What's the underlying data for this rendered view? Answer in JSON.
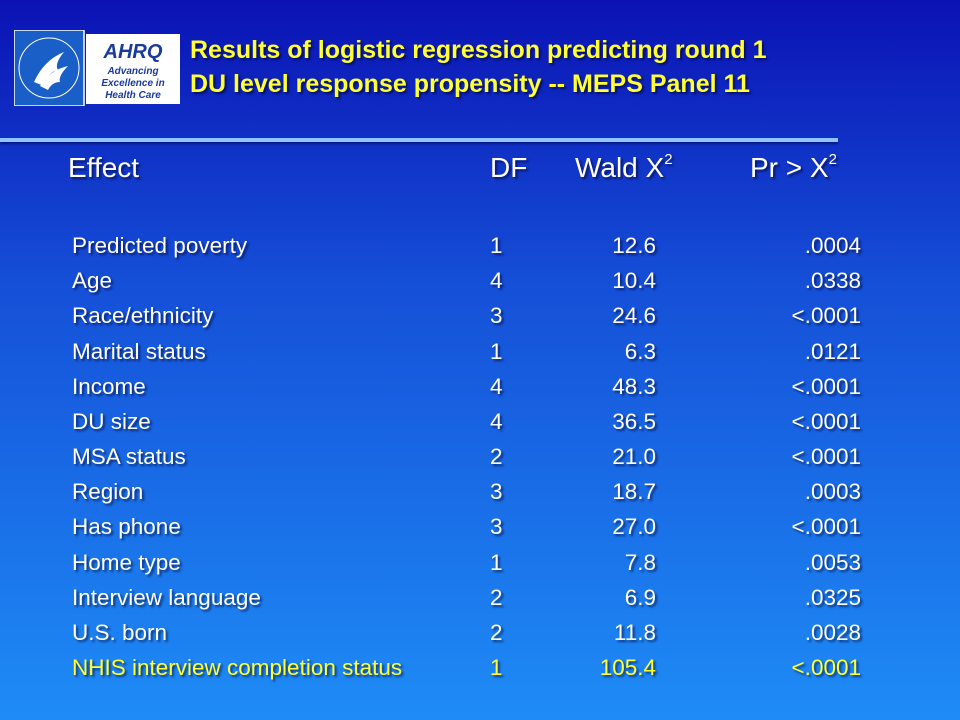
{
  "header": {
    "title_lines": [
      "Results of logistic regression predicting round 1",
      "DU level response propensity -- MEPS Panel 11"
    ],
    "logo": {
      "name": "AHRQ",
      "tagline": [
        "Advancing",
        "Excellence in",
        "Health Care"
      ]
    }
  },
  "table": {
    "columns": [
      {
        "text": "Effect"
      },
      {
        "text": "DF"
      },
      {
        "text": "Wald X",
        "sup": "2"
      },
      {
        "text": "Pr > X",
        "sup": "2"
      }
    ],
    "rows": [
      [
        "Predicted poverty",
        "1",
        "12.6",
        ".0004"
      ],
      [
        "Age",
        "4",
        "10.4",
        ".0338"
      ],
      [
        "Race/ethnicity",
        "3",
        "24.6",
        "<.0001"
      ],
      [
        "Marital status",
        "1",
        "6.3",
        ".0121"
      ],
      [
        "Income",
        "4",
        "48.3",
        "<.0001"
      ],
      [
        "DU size",
        "4",
        "36.5",
        "<.0001"
      ],
      [
        "MSA status",
        "2",
        "21.0",
        "<.0001"
      ],
      [
        "Region",
        "3",
        "18.7",
        ".0003"
      ],
      [
        "Has phone",
        "3",
        "27.0",
        "<.0001"
      ],
      [
        "Home type",
        "1",
        "7.8",
        ".0053"
      ],
      [
        "Interview language",
        "2",
        "6.9",
        ".0325"
      ],
      [
        "U.S. born",
        "2",
        "11.8",
        ".0028"
      ],
      [
        "NHIS interview completion status",
        "1",
        "105.4",
        "<.0001"
      ]
    ]
  }
}
